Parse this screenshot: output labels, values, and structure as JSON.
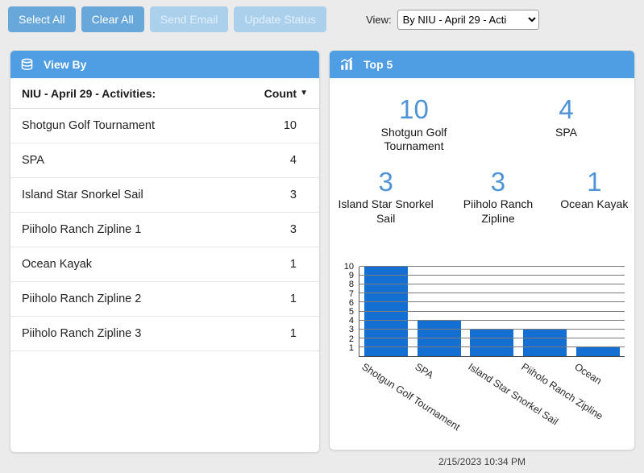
{
  "colors": {
    "accent": "#4f9de2",
    "button_enabled": "#68a7da",
    "button_disabled": "#abd0ec",
    "stat_number": "#4e93d6",
    "background": "#ebebeb"
  },
  "toolbar": {
    "buttons": [
      {
        "label": "Select All",
        "enabled": true
      },
      {
        "label": "Clear All",
        "enabled": true
      },
      {
        "label": "Send Email",
        "enabled": false
      },
      {
        "label": "Update Status",
        "enabled": false
      }
    ],
    "view_label": "View:",
    "view_selected": "By NIU - April 29 - Acti"
  },
  "view_by_panel": {
    "title": "View By",
    "columns": {
      "name": "NIU - April 29 - Activities:",
      "count": "Count",
      "sort_icon": "▼"
    },
    "rows": [
      {
        "name": "Shotgun Golf Tournament",
        "count": "10"
      },
      {
        "name": "SPA",
        "count": "4"
      },
      {
        "name": "Island Star Snorkel Sail",
        "count": "3"
      },
      {
        "name": "Piiholo Ranch Zipline 1",
        "count": "3"
      },
      {
        "name": "Ocean Kayak",
        "count": "1"
      },
      {
        "name": "Piiholo Ranch Zipline 2",
        "count": "1"
      },
      {
        "name": "Piiholo Ranch Zipline 3",
        "count": "1"
      }
    ]
  },
  "top5_panel": {
    "title": "Top 5",
    "stats": [
      {
        "value": "10",
        "label": "Shotgun Golf Tournament"
      },
      {
        "value": "4",
        "label": "SPA"
      },
      {
        "value": "3",
        "label": "Island Star Snorkel Sail"
      },
      {
        "value": "3",
        "label": "Piiholo Ranch Zipline"
      },
      {
        "value": "1",
        "label": "Ocean Kayak"
      }
    ]
  },
  "chart_data": {
    "type": "bar",
    "categories": [
      "Shotgun Golf Tournament",
      "SPA",
      "Island Star Snorkel Sail",
      "Piiholo Ranch Zipline",
      "Ocean"
    ],
    "values": [
      10,
      4,
      3,
      3,
      1
    ],
    "title": "",
    "xlabel": "",
    "ylabel": "",
    "ylim": [
      0,
      10
    ],
    "yticks": [
      1,
      2,
      3,
      4,
      5,
      6,
      7,
      8,
      9,
      10
    ],
    "grid": true,
    "legend": false,
    "bar_color": "#1370d2"
  },
  "footer": {
    "timestamp": "2/15/2023 10:34 PM"
  }
}
